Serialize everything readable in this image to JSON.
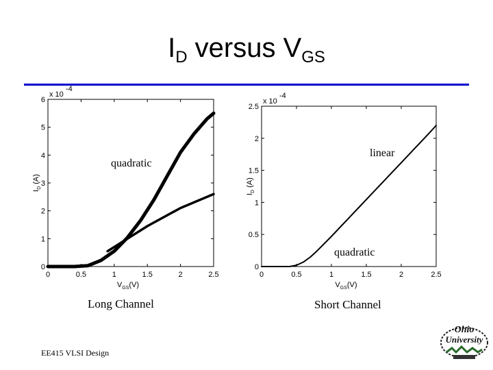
{
  "slide": {
    "title_main": "I",
    "title_sub1": "D",
    "title_mid": " versus V",
    "title_sub2": "GS",
    "footer": "EE415 VLSI Design",
    "logo_text": "Ohio University",
    "colors": {
      "title_rule": "#0000cc",
      "curve": "#000000",
      "background": "#ffffff"
    }
  },
  "chart_data": [
    {
      "type": "line",
      "caption": "Long Channel",
      "xlabel_main": "V",
      "xlabel_sub": "GS",
      "xlabel_unit": "(V)",
      "ylabel_main": "I",
      "ylabel_sub": "D",
      "ylabel_unit": "(A)",
      "y_multiplier": "x 10",
      "y_exponent": "-4",
      "xlim": [
        0,
        2.5
      ],
      "ylim": [
        0,
        6
      ],
      "xticks": [
        "0",
        "0.5",
        "1",
        "1.5",
        "2",
        "2.5"
      ],
      "yticks": [
        "0",
        "1",
        "2",
        "3",
        "4",
        "5",
        "6"
      ],
      "annotations": [
        {
          "text": "quadratic",
          "x": 1.2,
          "y": 3.5
        }
      ],
      "series": [
        {
          "stroke": "thick",
          "x": [
            0,
            0.2,
            0.4,
            0.6,
            0.8,
            1.0,
            1.2,
            1.4,
            1.6,
            1.8,
            2.0,
            2.2,
            2.4,
            2.5
          ],
          "y": [
            0,
            0,
            0,
            0.03,
            0.22,
            0.55,
            1.04,
            1.66,
            2.4,
            3.25,
            4.1,
            4.75,
            5.3,
            5.5
          ]
        },
        {
          "stroke": "medium",
          "x": [
            0.9,
            1.5,
            2.0,
            2.5
          ],
          "y": [
            0.55,
            1.45,
            2.1,
            2.6
          ]
        }
      ]
    },
    {
      "type": "line",
      "caption": "Short Channel",
      "xlabel_main": "V",
      "xlabel_sub": "GS",
      "xlabel_unit": "(V)",
      "ylabel_main": "I",
      "ylabel_sub": "D",
      "ylabel_unit": "(A)",
      "y_multiplier": "x 10",
      "y_exponent": "-4",
      "xlim": [
        0,
        2.5
      ],
      "ylim": [
        0,
        2.5
      ],
      "xticks": [
        "0",
        "0.5",
        "1",
        "1.5",
        "2",
        "2.5"
      ],
      "yticks": [
        "0",
        "0.5",
        "1",
        "1.5",
        "2",
        "2.5"
      ],
      "annotations": [
        {
          "text": "linear",
          "x": 2.0,
          "y": 1.95
        },
        {
          "text": "quadratic",
          "x": 1.3,
          "y": 0.25
        }
      ],
      "series": [
        {
          "stroke": "thin",
          "x": [
            0,
            0.2,
            0.4,
            0.5,
            0.6,
            0.7,
            0.8,
            1.0,
            1.2,
            1.4,
            1.6,
            1.8,
            2.0,
            2.2,
            2.4,
            2.5
          ],
          "y": [
            0,
            0,
            0,
            0.02,
            0.07,
            0.15,
            0.25,
            0.47,
            0.7,
            0.93,
            1.16,
            1.39,
            1.62,
            1.85,
            2.08,
            2.2
          ]
        }
      ]
    }
  ]
}
